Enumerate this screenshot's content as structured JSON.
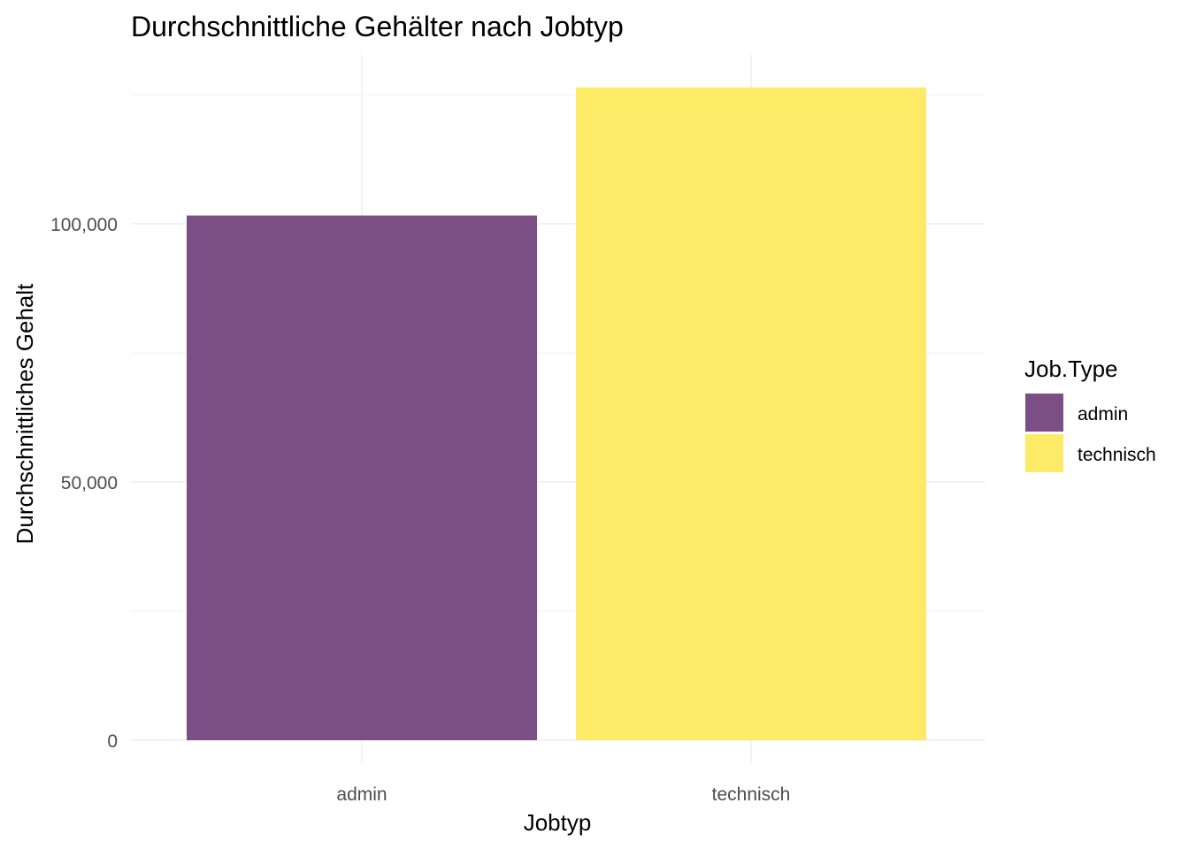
{
  "chart_data": {
    "type": "bar",
    "title": "Durchschnittliche Gehälter nach Jobtyp",
    "xlabel": "Jobtyp",
    "ylabel": "Durchschnittliches Gehalt",
    "categories": [
      "admin",
      "technisch"
    ],
    "values": [
      101600,
      126400
    ],
    "colors": [
      "#7b4f86",
      "#fdeb68"
    ],
    "ylim": [
      0,
      126400
    ],
    "yticks": [
      0,
      50000,
      100000
    ],
    "ytick_labels": [
      "0",
      "50,000",
      "100,000"
    ],
    "grid": true,
    "legend": {
      "title": "Job.Type",
      "position": "right",
      "items": [
        {
          "label": "admin",
          "color": "#7b4f86"
        },
        {
          "label": "technisch",
          "color": "#fdeb68"
        }
      ]
    }
  }
}
